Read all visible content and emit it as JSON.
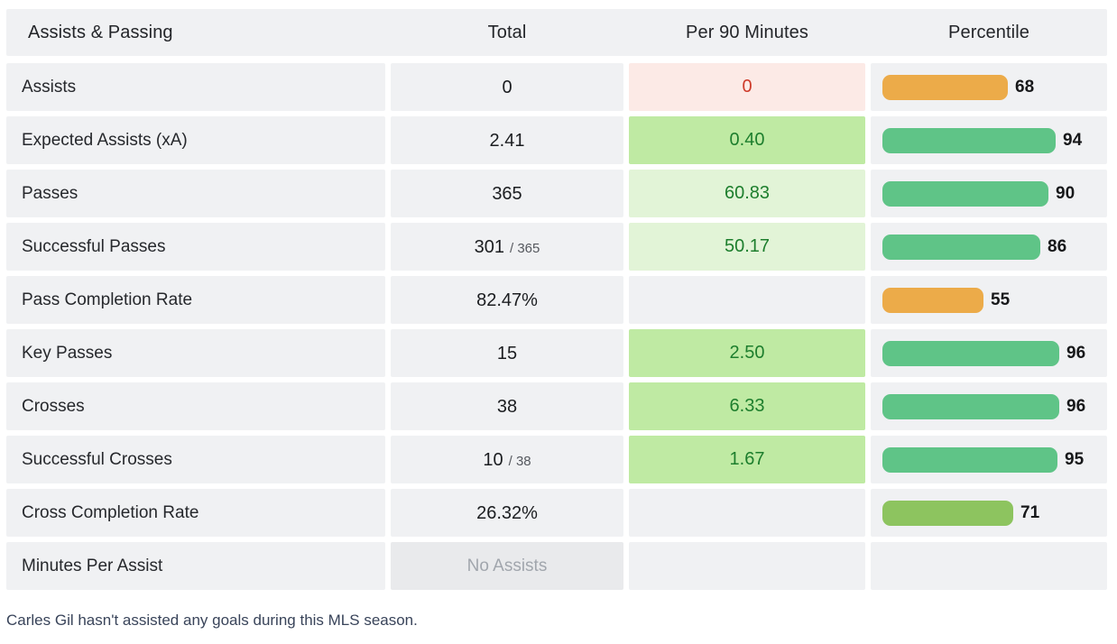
{
  "table": {
    "header": {
      "label": "Assists & Passing",
      "col_total": "Total",
      "col_per90": "Per 90 Minutes",
      "col_percentile": "Percentile"
    },
    "rows": [
      {
        "label": "Assists",
        "total": "0",
        "total_secondary": "",
        "total_tone": "normal",
        "per90": "0",
        "per90_tone": "red",
        "percentile": 68,
        "bar_color": "orange"
      },
      {
        "label": "Expected Assists (xA)",
        "total": "2.41",
        "total_secondary": "",
        "total_tone": "normal",
        "per90": "0.40",
        "per90_tone": "green-strong",
        "percentile": 94,
        "bar_color": "green"
      },
      {
        "label": "Passes",
        "total": "365",
        "total_secondary": "",
        "total_tone": "normal",
        "per90": "60.83",
        "per90_tone": "green-light",
        "percentile": 90,
        "bar_color": "green"
      },
      {
        "label": "Successful Passes",
        "total": "301",
        "total_secondary": "/ 365",
        "total_tone": "normal",
        "per90": "50.17",
        "per90_tone": "green-light",
        "percentile": 86,
        "bar_color": "green"
      },
      {
        "label": "Pass Completion Rate",
        "total": "82.47%",
        "total_secondary": "",
        "total_tone": "normal",
        "per90": "",
        "per90_tone": "none",
        "percentile": 55,
        "bar_color": "orange"
      },
      {
        "label": "Key Passes",
        "total": "15",
        "total_secondary": "",
        "total_tone": "normal",
        "per90": "2.50",
        "per90_tone": "green-strong",
        "percentile": 96,
        "bar_color": "green"
      },
      {
        "label": "Crosses",
        "total": "38",
        "total_secondary": "",
        "total_tone": "normal",
        "per90": "6.33",
        "per90_tone": "green-strong",
        "percentile": 96,
        "bar_color": "green"
      },
      {
        "label": "Successful Crosses",
        "total": "10",
        "total_secondary": "/ 38",
        "total_tone": "normal",
        "per90": "1.67",
        "per90_tone": "green-strong",
        "percentile": 95,
        "bar_color": "green"
      },
      {
        "label": "Cross Completion Rate",
        "total": "26.32%",
        "total_secondary": "",
        "total_tone": "normal",
        "per90": "",
        "per90_tone": "none",
        "percentile": 71,
        "bar_color": "yellow-green"
      },
      {
        "label": "Minutes Per Assist",
        "total": "No Assists",
        "total_secondary": "",
        "total_tone": "muted",
        "per90": "",
        "per90_tone": "none",
        "percentile": null,
        "bar_color": null
      }
    ]
  },
  "footer": {
    "note": "Carles Gil hasn't assisted any goals during this MLS season."
  },
  "colors": {
    "cell_bg": "#f0f1f3",
    "cell_bg_muted": "#e9eaec",
    "per90_red_bg": "#fceae6",
    "per90_red_text": "#ce3b2a",
    "per90_green_strong_bg": "#bfeaa3",
    "per90_green_light_bg": "#e2f4d7",
    "per90_green_text": "#1d7e2d",
    "bars": {
      "green": "#5fc487",
      "orange": "#ecab49",
      "yellow-green": "#8dc45f"
    },
    "footnote_text": "#39445a"
  }
}
